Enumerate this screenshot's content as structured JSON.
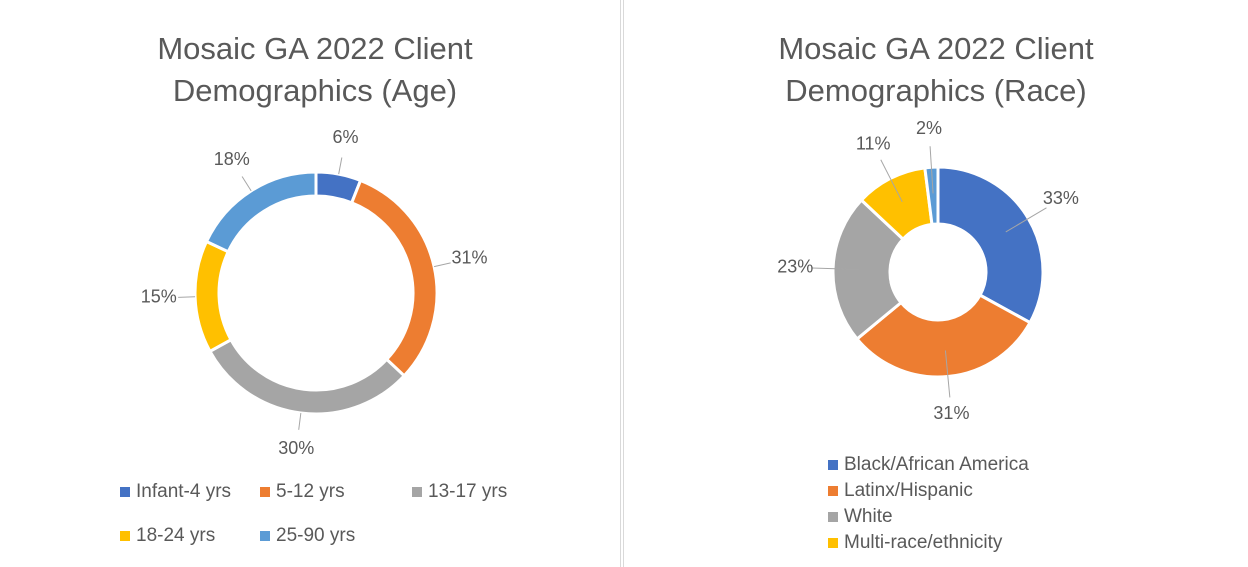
{
  "chart_data": [
    {
      "type": "donut",
      "title": "Mosaic GA 2022 Client Demographics (Age)",
      "categories": [
        "Infant-4 yrs",
        "5-12 yrs",
        "13-17 yrs",
        "18-24 yrs",
        "25-90 yrs"
      ],
      "values": [
        6,
        31,
        30,
        15,
        18
      ],
      "value_labels": [
        "6%",
        "31%",
        "30%",
        "15%",
        "18%"
      ],
      "colors": [
        "#4472c4",
        "#ed7d31",
        "#a5a5a5",
        "#ffc000",
        "#5b9bd5"
      ],
      "legend": "bottom"
    },
    {
      "type": "donut",
      "title": "Mosaic GA 2022 Client Demographics (Race)",
      "categories": [
        "Black/African America",
        "Latinx/Hispanic",
        "White",
        "Multi-race/ethnicity",
        null
      ],
      "values": [
        33,
        31,
        23,
        11,
        2
      ],
      "value_labels": [
        "33%",
        "31%",
        "23%",
        "11%",
        "2%"
      ],
      "colors": [
        "#4472c4",
        "#ed7d31",
        "#a5a5a5",
        "#ffc000",
        "#5b9bd5"
      ],
      "legend": "bottom"
    }
  ]
}
